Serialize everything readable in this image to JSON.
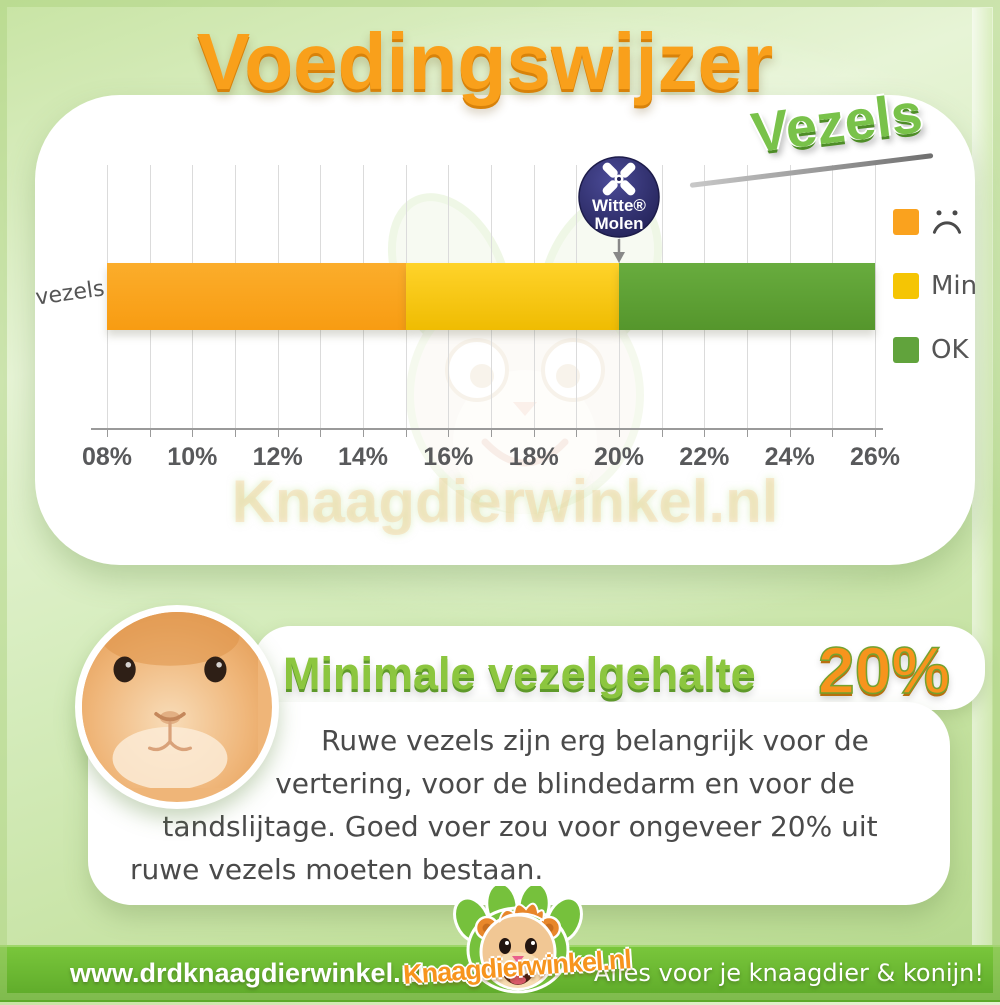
{
  "header": {
    "title": "Voedingswijzer",
    "subtitle": "Vezels"
  },
  "colors": {
    "title_orange": "#F9A01B",
    "subtitle_green": "#79C24A",
    "badge_navy": "#2B2A68",
    "footer_green": "#68B92F"
  },
  "chart_data": {
    "type": "bar",
    "orientation": "horizontal",
    "category": "vezels",
    "x_min": 8,
    "x_max": 26,
    "grid_step": 1,
    "x_tick_values": [
      8,
      10,
      12,
      14,
      16,
      18,
      20,
      22,
      24,
      26
    ],
    "x_ticks": [
      "08%",
      "10%",
      "12%",
      "14%",
      "16%",
      "18%",
      "20%",
      "22%",
      "24%",
      "26%"
    ],
    "segments": [
      {
        "from": 8,
        "to": 15,
        "color_top": "#FBAD2B",
        "color": "#F89C12"
      },
      {
        "from": 15,
        "to": 20,
        "color_top": "#FFD32A",
        "color": "#EFBC02"
      },
      {
        "from": 20,
        "to": 26,
        "color_top": "#68AC3E",
        "color": "#55962C"
      }
    ],
    "marker": {
      "label": "Witte Molen",
      "value": 20
    },
    "legend": [
      {
        "icon": "sad-face-icon",
        "label": "",
        "color": "#FAA21E"
      },
      {
        "icon": "",
        "label": "Min",
        "color": "#F5C504"
      },
      {
        "icon": "",
        "label": "OK",
        "color": "#61A33C"
      }
    ]
  },
  "badge": {
    "line1": "Witte®",
    "line2": "Molen"
  },
  "watermark": "Knaagdierwinkel.nl",
  "info": {
    "heading": "Minimale vezelgehalte",
    "heading_value": "20%",
    "body_lines": [
      "Ruwe vezels zijn erg belangrijk voor de",
      "vertering, voor de blindedarm en voor de",
      "tandslijtage. Goed voer zou voor ongeveer 20% uit",
      "ruwe vezels moeten bestaan."
    ]
  },
  "footer": {
    "left": "www.drdknaagdierwinkel.nl",
    "logo": "Knaagdierwinkel.nl",
    "right": "Alles voor je knaagdier & konijn!"
  }
}
